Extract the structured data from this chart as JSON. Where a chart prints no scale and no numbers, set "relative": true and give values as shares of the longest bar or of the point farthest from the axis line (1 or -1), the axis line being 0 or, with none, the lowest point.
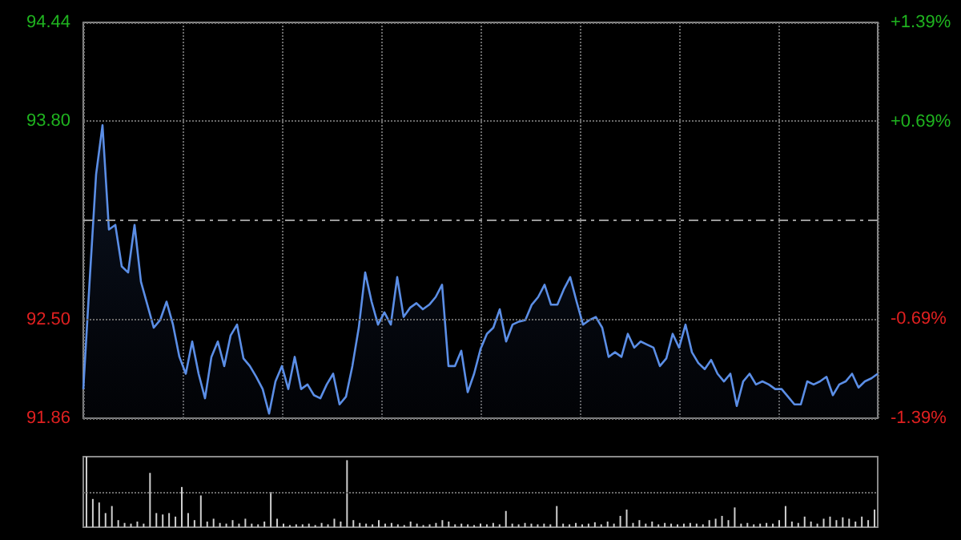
{
  "chart_data": [
    {
      "type": "area",
      "categories": [
        null,
        null,
        null,
        null,
        null,
        null,
        null,
        null,
        null,
        null,
        null,
        null,
        null,
        null,
        null,
        null,
        null,
        null,
        null,
        null,
        null,
        null,
        null,
        null,
        null,
        null,
        null,
        null,
        null,
        null,
        null,
        null,
        null,
        null,
        null,
        null,
        null,
        null,
        null,
        null,
        null,
        null,
        null,
        null,
        null,
        null,
        null,
        null,
        null,
        null,
        null,
        null,
        null,
        null,
        null,
        null,
        null,
        null,
        null,
        null,
        null,
        null,
        null,
        null,
        null,
        null,
        null,
        null,
        null,
        null,
        null,
        null,
        null,
        null,
        null,
        null,
        null,
        null,
        null,
        null,
        null,
        null,
        null,
        null,
        null,
        null,
        null,
        null,
        null,
        null,
        null,
        null,
        null,
        null,
        null,
        null,
        null,
        null,
        null,
        null,
        null,
        null,
        null,
        null,
        null,
        null,
        null,
        null,
        null,
        null,
        null,
        null,
        null,
        null,
        null,
        null,
        null,
        null,
        null,
        null,
        null,
        null,
        null,
        null,
        null
      ],
      "series": [
        {
          "color": "#5b8ee6",
          "values": [
            92.05,
            92.76,
            93.45,
            93.77,
            93.09,
            93.12,
            92.85,
            92.81,
            93.12,
            92.75,
            92.6,
            92.45,
            92.5,
            92.62,
            92.47,
            92.26,
            92.15,
            92.36,
            92.15,
            91.99,
            92.26,
            92.36,
            92.2,
            92.4,
            92.47,
            92.25,
            92.2,
            92.13,
            92.05,
            91.89,
            92.1,
            92.2,
            92.05,
            92.26,
            92.05,
            92.08,
            92.01,
            91.99,
            92.08,
            92.15,
            91.95,
            92.0,
            92.2,
            92.45,
            92.81,
            92.62,
            92.47,
            92.55,
            92.47,
            92.78,
            92.52,
            92.58,
            92.61,
            92.57,
            92.6,
            92.65,
            92.73,
            92.2,
            92.2,
            92.3,
            92.03,
            92.15,
            92.31,
            92.41,
            92.45,
            92.57,
            92.36,
            92.47,
            92.49,
            92.5,
            92.6,
            92.65,
            92.73,
            92.6,
            92.6,
            92.7,
            92.78,
            92.62,
            92.47,
            92.5,
            92.52,
            92.45,
            92.26,
            92.29,
            92.26,
            92.41,
            92.32,
            92.36,
            92.34,
            92.32,
            92.2,
            92.25,
            92.41,
            92.32,
            92.47,
            92.29,
            92.22,
            92.18,
            92.24,
            92.15,
            92.1,
            92.15,
            91.94,
            92.1,
            92.15,
            92.08,
            92.1,
            92.08,
            92.05,
            92.05,
            92.0,
            91.95,
            91.95,
            92.1,
            92.08,
            92.1,
            92.13,
            92.01,
            92.08,
            92.1,
            92.15,
            92.06,
            92.1,
            92.12,
            92.15
          ]
        }
      ],
      "ylim": [
        91.86,
        94.44
      ],
      "yticks": [
        {
          "value": 91.86,
          "label": "91.86"
        },
        {
          "value": 92.5,
          "label": "92.50"
        },
        {
          "value": 93.8,
          "label": "93.80"
        },
        {
          "value": 94.44,
          "label": "94.44"
        }
      ],
      "y2lim": [
        -1.39,
        1.39
      ],
      "y2ticks": [
        {
          "value": -1.39,
          "label": "-1.39%"
        },
        {
          "value": -0.69,
          "label": "-0.69%"
        },
        {
          "value": 0.69,
          "label": "+0.69%"
        },
        {
          "value": 1.39,
          "label": "+1.39%"
        }
      ],
      "ref_lines": [
        {
          "axis": "y",
          "value": 93.15,
          "color": "#9a9a9a",
          "line_style": "dashed"
        }
      ],
      "grid": true,
      "marker": "none",
      "line_style": "solid"
    },
    {
      "type": "bar",
      "relative": true,
      "color": "#cfcfcf",
      "ref_lines": [
        {
          "axis": "y",
          "value": 0.5,
          "color": "#6a6a6a",
          "line_style": "dotted"
        }
      ],
      "categories": [
        null,
        null,
        null,
        null,
        null,
        null,
        null,
        null,
        null,
        null,
        null,
        null,
        null,
        null,
        null,
        null,
        null,
        null,
        null,
        null,
        null,
        null,
        null,
        null,
        null,
        null,
        null,
        null,
        null,
        null,
        null,
        null,
        null,
        null,
        null,
        null,
        null,
        null,
        null,
        null,
        null,
        null,
        null,
        null,
        null,
        null,
        null,
        null,
        null,
        null,
        null,
        null,
        null,
        null,
        null,
        null,
        null,
        null,
        null,
        null,
        null,
        null,
        null,
        null,
        null,
        null,
        null,
        null,
        null,
        null,
        null,
        null,
        null,
        null,
        null,
        null,
        null,
        null,
        null,
        null,
        null,
        null,
        null,
        null,
        null,
        null,
        null,
        null,
        null,
        null,
        null,
        null,
        null,
        null,
        null,
        null,
        null,
        null,
        null,
        null,
        null,
        null,
        null,
        null,
        null,
        null,
        null,
        null,
        null,
        null,
        null,
        null,
        null,
        null,
        null,
        null,
        null,
        null,
        null,
        null,
        null,
        null,
        null,
        null,
        null
      ],
      "values": [
        1.0,
        0.4,
        0.35,
        0.2,
        0.3,
        0.1,
        0.06,
        0.05,
        0.08,
        0.05,
        0.77,
        0.2,
        0.18,
        0.2,
        0.15,
        0.57,
        0.2,
        0.1,
        0.45,
        0.08,
        0.12,
        0.06,
        0.05,
        0.1,
        0.05,
        0.12,
        0.05,
        0.04,
        0.08,
        0.5,
        0.12,
        0.05,
        0.03,
        0.04,
        0.04,
        0.05,
        0.03,
        0.06,
        0.04,
        0.12,
        0.08,
        0.95,
        0.1,
        0.06,
        0.05,
        0.04,
        0.1,
        0.05,
        0.06,
        0.04,
        0.03,
        0.08,
        0.05,
        0.03,
        0.04,
        0.06,
        0.1,
        0.08,
        0.04,
        0.05,
        0.04,
        0.03,
        0.05,
        0.04,
        0.06,
        0.04,
        0.23,
        0.05,
        0.04,
        0.06,
        0.05,
        0.04,
        0.05,
        0.04,
        0.3,
        0.05,
        0.04,
        0.06,
        0.04,
        0.05,
        0.07,
        0.04,
        0.08,
        0.05,
        0.16,
        0.25,
        0.06,
        0.1,
        0.05,
        0.08,
        0.04,
        0.06,
        0.05,
        0.04,
        0.05,
        0.06,
        0.05,
        0.04,
        0.1,
        0.12,
        0.16,
        0.1,
        0.28,
        0.05,
        0.06,
        0.04,
        0.05,
        0.06,
        0.05,
        0.1,
        0.3,
        0.08,
        0.06,
        0.15,
        0.08,
        0.05,
        0.12,
        0.15,
        0.1,
        0.14,
        0.12,
        0.08,
        0.15,
        0.1,
        0.25
      ]
    }
  ]
}
